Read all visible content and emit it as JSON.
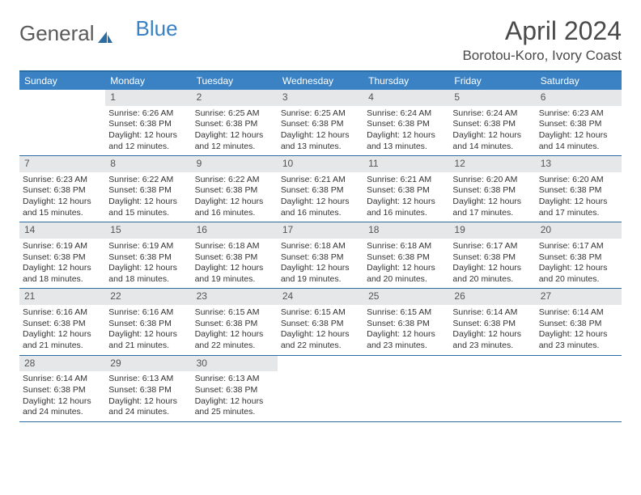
{
  "logo": {
    "text1": "General",
    "text2": "Blue"
  },
  "title": "April 2024",
  "location": "Borotou-Koro, Ivory Coast",
  "dayHeaders": [
    "Sunday",
    "Monday",
    "Tuesday",
    "Wednesday",
    "Thursday",
    "Friday",
    "Saturday"
  ],
  "colors": {
    "headerBg": "#3b82c4",
    "borderBlue": "#2b6ca3",
    "dayNumBg": "#e5e7e9"
  },
  "weeks": [
    [
      {
        "num": "",
        "empty": true
      },
      {
        "num": "1",
        "sunrise": "Sunrise: 6:26 AM",
        "sunset": "Sunset: 6:38 PM",
        "daylight": "Daylight: 12 hours and 12 minutes."
      },
      {
        "num": "2",
        "sunrise": "Sunrise: 6:25 AM",
        "sunset": "Sunset: 6:38 PM",
        "daylight": "Daylight: 12 hours and 12 minutes."
      },
      {
        "num": "3",
        "sunrise": "Sunrise: 6:25 AM",
        "sunset": "Sunset: 6:38 PM",
        "daylight": "Daylight: 12 hours and 13 minutes."
      },
      {
        "num": "4",
        "sunrise": "Sunrise: 6:24 AM",
        "sunset": "Sunset: 6:38 PM",
        "daylight": "Daylight: 12 hours and 13 minutes."
      },
      {
        "num": "5",
        "sunrise": "Sunrise: 6:24 AM",
        "sunset": "Sunset: 6:38 PM",
        "daylight": "Daylight: 12 hours and 14 minutes."
      },
      {
        "num": "6",
        "sunrise": "Sunrise: 6:23 AM",
        "sunset": "Sunset: 6:38 PM",
        "daylight": "Daylight: 12 hours and 14 minutes."
      }
    ],
    [
      {
        "num": "7",
        "sunrise": "Sunrise: 6:23 AM",
        "sunset": "Sunset: 6:38 PM",
        "daylight": "Daylight: 12 hours and 15 minutes."
      },
      {
        "num": "8",
        "sunrise": "Sunrise: 6:22 AM",
        "sunset": "Sunset: 6:38 PM",
        "daylight": "Daylight: 12 hours and 15 minutes."
      },
      {
        "num": "9",
        "sunrise": "Sunrise: 6:22 AM",
        "sunset": "Sunset: 6:38 PM",
        "daylight": "Daylight: 12 hours and 16 minutes."
      },
      {
        "num": "10",
        "sunrise": "Sunrise: 6:21 AM",
        "sunset": "Sunset: 6:38 PM",
        "daylight": "Daylight: 12 hours and 16 minutes."
      },
      {
        "num": "11",
        "sunrise": "Sunrise: 6:21 AM",
        "sunset": "Sunset: 6:38 PM",
        "daylight": "Daylight: 12 hours and 16 minutes."
      },
      {
        "num": "12",
        "sunrise": "Sunrise: 6:20 AM",
        "sunset": "Sunset: 6:38 PM",
        "daylight": "Daylight: 12 hours and 17 minutes."
      },
      {
        "num": "13",
        "sunrise": "Sunrise: 6:20 AM",
        "sunset": "Sunset: 6:38 PM",
        "daylight": "Daylight: 12 hours and 17 minutes."
      }
    ],
    [
      {
        "num": "14",
        "sunrise": "Sunrise: 6:19 AM",
        "sunset": "Sunset: 6:38 PM",
        "daylight": "Daylight: 12 hours and 18 minutes."
      },
      {
        "num": "15",
        "sunrise": "Sunrise: 6:19 AM",
        "sunset": "Sunset: 6:38 PM",
        "daylight": "Daylight: 12 hours and 18 minutes."
      },
      {
        "num": "16",
        "sunrise": "Sunrise: 6:18 AM",
        "sunset": "Sunset: 6:38 PM",
        "daylight": "Daylight: 12 hours and 19 minutes."
      },
      {
        "num": "17",
        "sunrise": "Sunrise: 6:18 AM",
        "sunset": "Sunset: 6:38 PM",
        "daylight": "Daylight: 12 hours and 19 minutes."
      },
      {
        "num": "18",
        "sunrise": "Sunrise: 6:18 AM",
        "sunset": "Sunset: 6:38 PM",
        "daylight": "Daylight: 12 hours and 20 minutes."
      },
      {
        "num": "19",
        "sunrise": "Sunrise: 6:17 AM",
        "sunset": "Sunset: 6:38 PM",
        "daylight": "Daylight: 12 hours and 20 minutes."
      },
      {
        "num": "20",
        "sunrise": "Sunrise: 6:17 AM",
        "sunset": "Sunset: 6:38 PM",
        "daylight": "Daylight: 12 hours and 20 minutes."
      }
    ],
    [
      {
        "num": "21",
        "sunrise": "Sunrise: 6:16 AM",
        "sunset": "Sunset: 6:38 PM",
        "daylight": "Daylight: 12 hours and 21 minutes."
      },
      {
        "num": "22",
        "sunrise": "Sunrise: 6:16 AM",
        "sunset": "Sunset: 6:38 PM",
        "daylight": "Daylight: 12 hours and 21 minutes."
      },
      {
        "num": "23",
        "sunrise": "Sunrise: 6:15 AM",
        "sunset": "Sunset: 6:38 PM",
        "daylight": "Daylight: 12 hours and 22 minutes."
      },
      {
        "num": "24",
        "sunrise": "Sunrise: 6:15 AM",
        "sunset": "Sunset: 6:38 PM",
        "daylight": "Daylight: 12 hours and 22 minutes."
      },
      {
        "num": "25",
        "sunrise": "Sunrise: 6:15 AM",
        "sunset": "Sunset: 6:38 PM",
        "daylight": "Daylight: 12 hours and 23 minutes."
      },
      {
        "num": "26",
        "sunrise": "Sunrise: 6:14 AM",
        "sunset": "Sunset: 6:38 PM",
        "daylight": "Daylight: 12 hours and 23 minutes."
      },
      {
        "num": "27",
        "sunrise": "Sunrise: 6:14 AM",
        "sunset": "Sunset: 6:38 PM",
        "daylight": "Daylight: 12 hours and 23 minutes."
      }
    ],
    [
      {
        "num": "28",
        "sunrise": "Sunrise: 6:14 AM",
        "sunset": "Sunset: 6:38 PM",
        "daylight": "Daylight: 12 hours and 24 minutes."
      },
      {
        "num": "29",
        "sunrise": "Sunrise: 6:13 AM",
        "sunset": "Sunset: 6:38 PM",
        "daylight": "Daylight: 12 hours and 24 minutes."
      },
      {
        "num": "30",
        "sunrise": "Sunrise: 6:13 AM",
        "sunset": "Sunset: 6:38 PM",
        "daylight": "Daylight: 12 hours and 25 minutes."
      },
      {
        "num": "",
        "empty": true
      },
      {
        "num": "",
        "empty": true
      },
      {
        "num": "",
        "empty": true
      },
      {
        "num": "",
        "empty": true
      }
    ]
  ]
}
